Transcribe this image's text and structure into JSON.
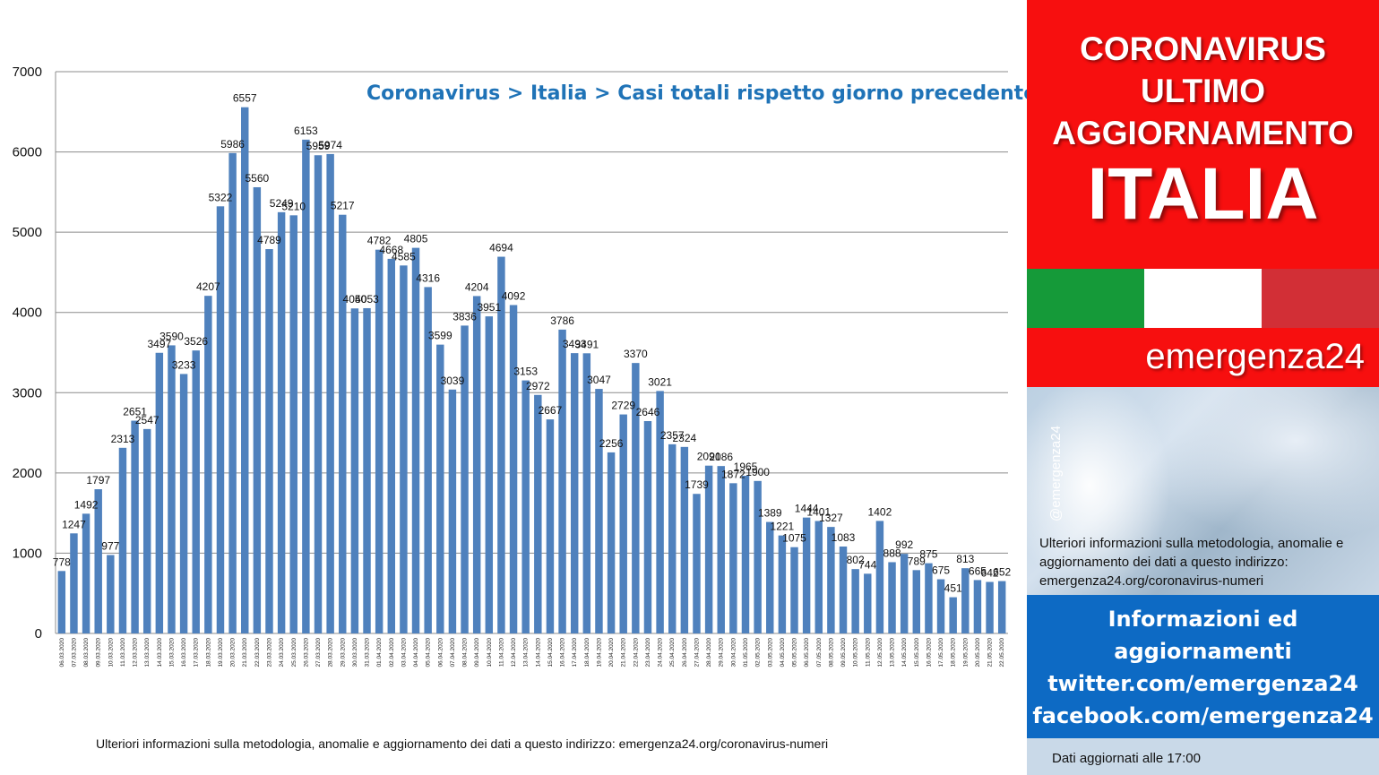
{
  "chart_data": {
    "type": "bar",
    "title": "Coronavirus > Italia > Casi totali rispetto giorno precedente",
    "ylim": [
      0,
      7000
    ],
    "yticks": [
      0,
      1000,
      2000,
      3000,
      4000,
      5000,
      6000,
      7000
    ],
    "grid": true,
    "legend": "none",
    "bar_color": "#4f81bd",
    "categories": [
      "06.03.2020",
      "07.03.2020",
      "08.03.2020",
      "09.03.2020",
      "10.03.2020",
      "11.03.2020",
      "12.03.2020",
      "13.03.2020",
      "14.03.2020",
      "15.03.2020",
      "16.03.2020",
      "17.03.2020",
      "18.03.2020",
      "19.03.2020",
      "20.03.2020",
      "21.03.2020",
      "22.03.2020",
      "23.03.2020",
      "24.03.2020",
      "25.03.2020",
      "26.03.2020",
      "27.03.2020",
      "28.03.2020",
      "29.03.2020",
      "30.03.2020",
      "31.03.2020",
      "01.04.2020",
      "02.04.2020",
      "03.04.2020",
      "04.04.2020",
      "05.04.2020",
      "06.04.2020",
      "07.04.2020",
      "08.04.2020",
      "09.04.2020",
      "10.04.2020",
      "11.04.2020",
      "12.04.2020",
      "13.04.2020",
      "14.04.2020",
      "15.04.2020",
      "16.04.2020",
      "17.04.2020",
      "18.04.2020",
      "19.04.2020",
      "20.04.2020",
      "21.04.2020",
      "22.04.2020",
      "23.04.2020",
      "24.04.2020",
      "25.04.2020",
      "26.04.2020",
      "27.04.2020",
      "28.04.2020",
      "29.04.2020",
      "30.04.2020",
      "01.05.2020",
      "02.05.2020",
      "03.05.2020",
      "04.05.2020",
      "05.05.2020",
      "06.05.2020",
      "07.05.2020",
      "08.05.2020",
      "09.05.2020",
      "10.05.2020",
      "11.05.2020",
      "12.05.2020",
      "13.05.2020",
      "14.05.2020",
      "15.05.2020",
      "16.05.2020",
      "17.05.2020",
      "18.05.2020",
      "19.05.2020",
      "20.05.2020",
      "21.05.2020",
      "22.05.2020"
    ],
    "values": [
      778,
      1247,
      1492,
      1797,
      977,
      2313,
      2651,
      2547,
      3497,
      3590,
      3233,
      3526,
      4207,
      5322,
      5986,
      6557,
      5560,
      4789,
      5249,
      5210,
      6153,
      5959,
      5974,
      5217,
      4050,
      4053,
      4782,
      4668,
      4585,
      4805,
      4316,
      3599,
      3039,
      3836,
      4204,
      3951,
      4694,
      4092,
      3153,
      2972,
      2667,
      3786,
      3493,
      3491,
      3047,
      2256,
      2729,
      3370,
      2646,
      3021,
      2357,
      2324,
      1739,
      2091,
      2086,
      1872,
      1965,
      1900,
      1389,
      1221,
      1075,
      1444,
      1401,
      1327,
      1083,
      802,
      744,
      1402,
      888,
      992,
      789,
      875,
      675,
      451,
      813,
      665,
      642,
      652
    ]
  },
  "note": "Ulteriori informazioni sulla metodologia, anomalie e aggiornamento dei dati a questo indirizzo: emergenza24.org/coronavirus-numeri",
  "sidebar": {
    "header_lines": [
      "CORONAVIRUS",
      "ULTIMO",
      "AGGIORNAMENTO"
    ],
    "country": "ITALIA",
    "flag_colors": [
      "#159a39",
      "#ffffff",
      "#d22f36"
    ],
    "brand": "emergenza24",
    "handle": "@emergenza24",
    "photo_info": "Ulteriori informazioni sulla metodologia, anomalie e aggiornamento dei dati a questo indirizzo: emergenza24.org/coronavirus-numeri",
    "info_lines": [
      "Informazioni ed",
      "aggiornamenti",
      "twitter.com/emergenza24",
      "facebook.com/emergenza24"
    ],
    "updated": "Dati aggiornati alle 17:00"
  }
}
